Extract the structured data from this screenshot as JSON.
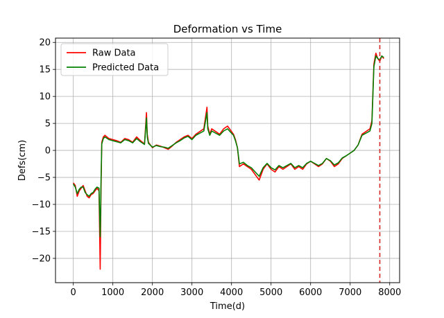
{
  "chart_data": {
    "type": "line",
    "title": "Deformation vs Time",
    "xlabel": "Time(d)",
    "ylabel": "Defs(cm)",
    "xlim": [
      -450,
      8250
    ],
    "ylim": [
      -24.5,
      20.8
    ],
    "xticks": [
      0,
      1000,
      2000,
      3000,
      4000,
      5000,
      6000,
      7000,
      8000
    ],
    "yticks": [
      -20,
      -15,
      -10,
      -5,
      0,
      5,
      10,
      15,
      20
    ],
    "ytick_labels": [
      "−20",
      "−15",
      "−10",
      "−5",
      "0",
      "5",
      "10",
      "15",
      "20"
    ],
    "grid": true,
    "legend_position": "upper-left",
    "vline": {
      "x": 7750,
      "color": "#d62728",
      "style": "dashed"
    },
    "series": [
      {
        "name": "Raw Data",
        "color": "#ff0000",
        "x": [
          0,
          50,
          100,
          150,
          200,
          250,
          300,
          350,
          400,
          450,
          500,
          550,
          600,
          650,
          680,
          690,
          700,
          720,
          760,
          800,
          900,
          1000,
          1100,
          1200,
          1300,
          1400,
          1500,
          1600,
          1700,
          1800,
          1850,
          1870,
          1900,
          2000,
          2100,
          2200,
          2300,
          2400,
          2500,
          2600,
          2700,
          2800,
          2900,
          3000,
          3100,
          3200,
          3300,
          3380,
          3400,
          3450,
          3500,
          3600,
          3700,
          3800,
          3900,
          4000,
          4050,
          4100,
          4150,
          4200,
          4300,
          4400,
          4500,
          4600,
          4700,
          4800,
          4900,
          5000,
          5100,
          5200,
          5300,
          5400,
          5500,
          5600,
          5700,
          5800,
          5900,
          6000,
          6100,
          6200,
          6300,
          6400,
          6500,
          6600,
          6700,
          6800,
          6900,
          7000,
          7100,
          7200,
          7300,
          7400,
          7500,
          7550,
          7600,
          7650,
          7700,
          7750,
          7800,
          7850
        ],
        "y": [
          -6,
          -6.5,
          -8.5,
          -7.5,
          -7,
          -6.5,
          -7.5,
          -8.5,
          -8.8,
          -8.2,
          -8,
          -7.5,
          -7,
          -7.5,
          -22,
          -15,
          -8,
          1.5,
          2.5,
          2.8,
          2.2,
          2,
          1.8,
          1.5,
          2.2,
          2,
          1.5,
          2.5,
          1.8,
          1.2,
          7,
          3,
          1.5,
          0.5,
          1,
          0.8,
          0.5,
          0.2,
          0.8,
          1.5,
          2,
          2.5,
          2.8,
          2.2,
          3,
          3.5,
          4,
          8,
          4.5,
          3,
          4,
          3.5,
          3,
          4,
          4.5,
          3.5,
          3,
          2,
          0.5,
          -3,
          -2.5,
          -3,
          -3.5,
          -4.5,
          -5.5,
          -3.5,
          -2.5,
          -3.5,
          -4,
          -3,
          -3.5,
          -3,
          -2.5,
          -3.5,
          -3,
          -3.5,
          -2.5,
          -2,
          -2.5,
          -3,
          -2.5,
          -1.5,
          -2,
          -3,
          -2.5,
          -1.5,
          -1,
          -0.5,
          0,
          1,
          3,
          3.5,
          4,
          5.5,
          16,
          18,
          17,
          16.5,
          17.5,
          17
        ]
      },
      {
        "name": "Predicted Data",
        "color": "#008000",
        "x": [
          0,
          50,
          100,
          150,
          200,
          250,
          300,
          350,
          400,
          450,
          500,
          550,
          600,
          650,
          680,
          690,
          700,
          720,
          760,
          800,
          900,
          1000,
          1100,
          1200,
          1300,
          1400,
          1500,
          1600,
          1700,
          1800,
          1850,
          1870,
          1900,
          2000,
          2100,
          2200,
          2300,
          2400,
          2500,
          2600,
          2700,
          2800,
          2900,
          3000,
          3100,
          3200,
          3300,
          3380,
          3400,
          3450,
          3500,
          3600,
          3700,
          3800,
          3900,
          4000,
          4050,
          4100,
          4150,
          4200,
          4300,
          4400,
          4500,
          4600,
          4700,
          4800,
          4900,
          5000,
          5100,
          5200,
          5300,
          5400,
          5500,
          5600,
          5700,
          5800,
          5900,
          6000,
          6100,
          6200,
          6300,
          6400,
          6500,
          6600,
          6700,
          6800,
          6900,
          7000,
          7100,
          7200,
          7300,
          7400,
          7500,
          7550,
          7600,
          7650,
          7700,
          7750,
          7800,
          7850
        ],
        "y": [
          -6.2,
          -6.8,
          -8,
          -7.2,
          -6.8,
          -6.8,
          -7.8,
          -8.2,
          -8.5,
          -8,
          -7.8,
          -7.2,
          -6.8,
          -7,
          -16,
          -12,
          -6,
          1.2,
          2.2,
          2.5,
          2,
          1.8,
          1.6,
          1.4,
          2,
          1.8,
          1.4,
          2.2,
          1.6,
          1.1,
          6,
          2.5,
          1.3,
          0.6,
          0.9,
          0.7,
          0.6,
          0.4,
          0.9,
          1.4,
          1.8,
          2.3,
          2.6,
          2,
          2.8,
          3.2,
          3.6,
          7,
          4,
          2.8,
          3.6,
          3.2,
          2.8,
          3.6,
          4,
          3.2,
          2.8,
          1.8,
          0.5,
          -2.5,
          -2.2,
          -2.8,
          -3.2,
          -4,
          -4.8,
          -3.2,
          -2.4,
          -3.2,
          -3.6,
          -2.8,
          -3.2,
          -2.8,
          -2.4,
          -3.2,
          -2.8,
          -3.2,
          -2.4,
          -2,
          -2.4,
          -2.8,
          -2.4,
          -1.5,
          -1.9,
          -2.7,
          -2.3,
          -1.4,
          -1,
          -0.5,
          0,
          1,
          2.8,
          3.2,
          3.6,
          5,
          15.5,
          17.5,
          17,
          16.8,
          17.5,
          17.2
        ]
      }
    ]
  }
}
